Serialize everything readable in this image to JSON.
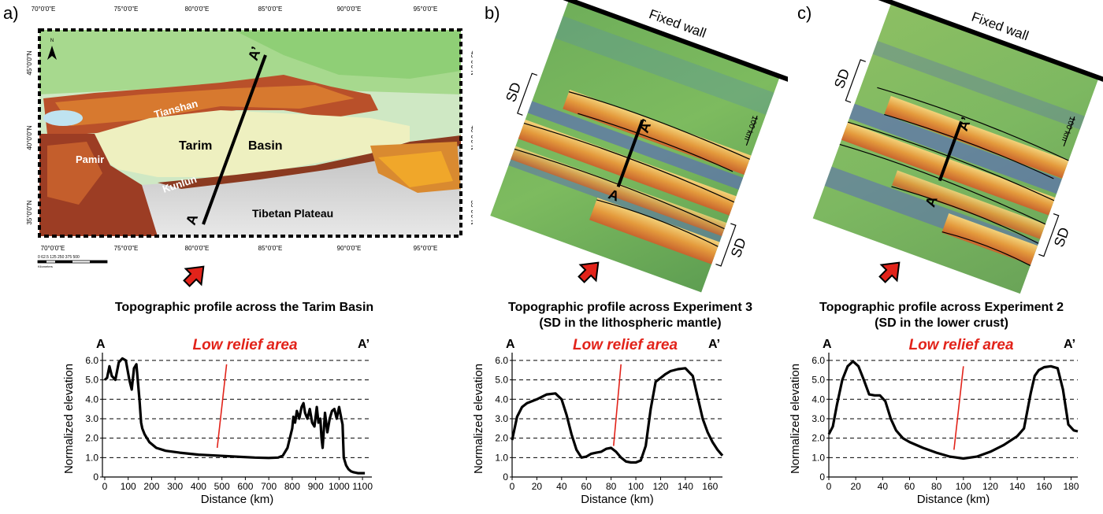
{
  "panels": {
    "a": {
      "letter": "a)",
      "map": {
        "lon_labels": [
          "70°0'0\"E",
          "75°0'0\"E",
          "80°0'0\"E",
          "85°0'0\"E",
          "90°0'0\"E",
          "95°0'0\"E"
        ],
        "lat_labels": [
          "45°0'0\"N",
          "40°0'0\"N",
          "35°0'0\"N"
        ],
        "place_names": {
          "tianshan": "Tianshan",
          "tarim": "Tarim",
          "basin": "Basin",
          "pamir": "Pamir",
          "kunlun": "Kunlun",
          "tibet": "Tibetan Plateau"
        },
        "profile_start": "A",
        "profile_end": "A’",
        "north": "N",
        "scale_ticks": "0  62.5 125    250    375    500",
        "scale_unit": "Kilometers"
      },
      "title": "Topographic profile across the Tarim Basin",
      "title2": ""
    },
    "b": {
      "letter": "b)",
      "wall": "Fixed wall",
      "sd1": "SD",
      "sd2": "SD",
      "scale": "100 km",
      "profile_start": "A",
      "profile_end": "A’",
      "title": "Topographic profile across Experiment 3",
      "title2": "(SD in the lithospheric mantle)"
    },
    "c": {
      "letter": "c)",
      "wall": "Fixed wall",
      "sd1": "SD",
      "sd2": "SD",
      "scale": "100 km",
      "profile_start": "A",
      "profile_end": "A’",
      "title": "Topographic profile across Experiment 2",
      "title2": "(SD in the lower crust)"
    }
  },
  "chart_data": [
    {
      "type": "line",
      "title": "Topographic profile across the Tarim Basin",
      "xlabel": "Distance (km)",
      "ylabel": "Normalized elevation",
      "xlim": [
        -10,
        1140
      ],
      "ylim": [
        0,
        6.4
      ],
      "xticks": [
        0,
        100,
        200,
        300,
        400,
        500,
        600,
        700,
        800,
        900,
        1000,
        1100
      ],
      "yticks": [
        0,
        1.0,
        2.0,
        3.0,
        4.0,
        5.0,
        6.0
      ],
      "ytick_labels": [
        "0",
        "1.0",
        "2.0",
        "3.0",
        "4.0",
        "5.0",
        "6.0"
      ],
      "grid": "horizontal dashed",
      "start_label": "A",
      "end_label": "A’",
      "annotation": "Low relief area",
      "annotation_line": {
        "x": [
          480,
          520
        ],
        "y": [
          1.5,
          5.8
        ]
      },
      "x": [
        0,
        10,
        20,
        30,
        45,
        60,
        75,
        90,
        105,
        115,
        125,
        135,
        148,
        155,
        160,
        170,
        190,
        220,
        260,
        320,
        400,
        480,
        560,
        640,
        700,
        740,
        760,
        780,
        800,
        805,
        812,
        820,
        830,
        840,
        848,
        855,
        865,
        875,
        885,
        895,
        905,
        912,
        920,
        925,
        930,
        940,
        950,
        960,
        970,
        980,
        990,
        1000,
        1010,
        1015,
        1020,
        1030,
        1040,
        1050,
        1060,
        1080,
        1100,
        1110
      ],
      "y": [
        5.0,
        5.1,
        5.7,
        5.2,
        5.0,
        5.9,
        6.1,
        6.0,
        5.0,
        4.5,
        5.6,
        5.8,
        4.0,
        2.8,
        2.5,
        2.2,
        1.8,
        1.5,
        1.35,
        1.25,
        1.15,
        1.1,
        1.05,
        1.0,
        0.98,
        1.0,
        1.1,
        1.5,
        2.5,
        3.1,
        2.8,
        3.4,
        3.0,
        3.6,
        3.8,
        3.3,
        3.0,
        3.5,
        2.8,
        2.6,
        3.6,
        2.8,
        3.0,
        2.0,
        1.5,
        3.3,
        2.3,
        3.0,
        3.4,
        3.5,
        3.0,
        3.6,
        3.0,
        2.7,
        1.0,
        0.6,
        0.4,
        0.3,
        0.25,
        0.2,
        0.2,
        0.2
      ]
    },
    {
      "type": "line",
      "title": "Topographic profile across Experiment 3",
      "xlabel": "Distance (km)",
      "ylabel": "Normalized elevation",
      "xlim": [
        0,
        170
      ],
      "ylim": [
        0,
        6.4
      ],
      "xticks": [
        0,
        20,
        40,
        60,
        80,
        100,
        120,
        140,
        160
      ],
      "yticks": [
        0,
        1.0,
        2.0,
        3.0,
        4.0,
        5.0,
        6.0
      ],
      "ytick_labels": [
        "0",
        "1.0",
        "2.0",
        "3.0",
        "4.0",
        "5.0",
        "6.0"
      ],
      "grid": "horizontal dashed",
      "start_label": "A",
      "end_label": "A’",
      "annotation": "Low relief area",
      "annotation_line": {
        "x": [
          82,
          88
        ],
        "y": [
          1.6,
          5.8
        ]
      },
      "x": [
        0,
        4,
        8,
        12,
        20,
        28,
        35,
        40,
        44,
        48,
        52,
        56,
        60,
        64,
        68,
        72,
        76,
        80,
        84,
        88,
        92,
        96,
        100,
        104,
        108,
        112,
        116,
        120,
        124,
        128,
        134,
        140,
        146,
        150,
        154,
        158,
        162,
        166,
        170
      ],
      "y": [
        1.9,
        3.1,
        3.6,
        3.8,
        4.0,
        4.25,
        4.3,
        4.0,
        3.2,
        2.2,
        1.4,
        1.0,
        1.05,
        1.2,
        1.25,
        1.3,
        1.45,
        1.5,
        1.3,
        1.0,
        0.8,
        0.75,
        0.75,
        0.85,
        1.6,
        3.5,
        4.9,
        5.1,
        5.3,
        5.45,
        5.55,
        5.6,
        5.2,
        4.1,
        3.0,
        2.3,
        1.8,
        1.4,
        1.1
      ]
    },
    {
      "type": "line",
      "title": "Topographic profile across Experiment 2",
      "xlabel": "Distance (km)",
      "ylabel": "Normalized elevation",
      "xlim": [
        0,
        185
      ],
      "ylim": [
        0,
        6.4
      ],
      "xticks": [
        0,
        20,
        40,
        60,
        80,
        100,
        120,
        140,
        160,
        180
      ],
      "yticks": [
        0,
        1.0,
        2.0,
        3.0,
        4.0,
        5.0,
        6.0
      ],
      "ytick_labels": [
        "0",
        "1.0",
        "2.0",
        "3.0",
        "4.0",
        "5.0",
        "6.0"
      ],
      "grid": "horizontal dashed",
      "start_label": "A",
      "end_label": "A’",
      "annotation": "Low relief area",
      "annotation_line": {
        "x": [
          93,
          100
        ],
        "y": [
          1.4,
          5.7
        ]
      },
      "x": [
        0,
        3,
        6,
        10,
        14,
        18,
        22,
        26,
        30,
        34,
        38,
        42,
        46,
        50,
        55,
        60,
        70,
        80,
        90,
        100,
        110,
        120,
        130,
        140,
        145,
        150,
        153,
        156,
        160,
        165,
        170,
        174,
        178,
        182,
        185
      ],
      "y": [
        2.2,
        2.6,
        3.7,
        5.0,
        5.7,
        5.95,
        5.7,
        5.0,
        4.25,
        4.2,
        4.2,
        3.9,
        3.0,
        2.4,
        2.0,
        1.8,
        1.5,
        1.25,
        1.05,
        0.95,
        1.05,
        1.3,
        1.65,
        2.1,
        2.5,
        4.3,
        5.2,
        5.5,
        5.65,
        5.7,
        5.6,
        4.5,
        2.7,
        2.4,
        2.35
      ]
    }
  ]
}
